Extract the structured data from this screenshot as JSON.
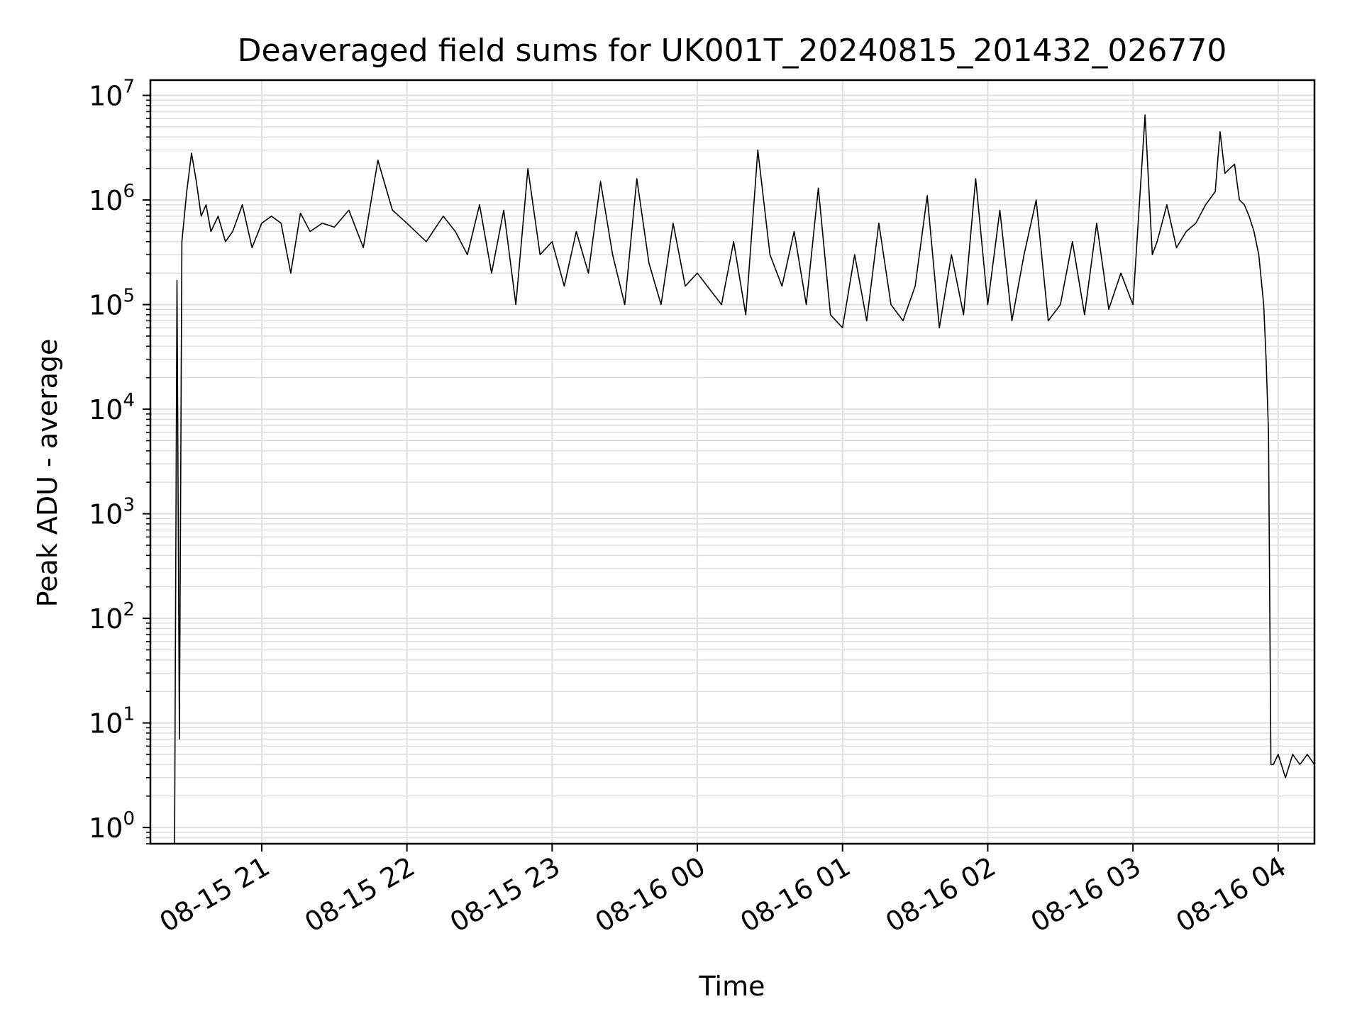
{
  "chart_data": {
    "type": "line",
    "title": "Deaveraged field sums for UK001T_20240815_201432_026770",
    "xlabel": "Time",
    "ylabel": "Peak ADU - average",
    "yscale": "log",
    "ylim": [
      0.7,
      14000000
    ],
    "xlim": [
      "2024-08-15 20:14",
      "2024-08-16 04:15"
    ],
    "grid": true,
    "legend": "none",
    "x_ticks": [
      {
        "time": "2024-08-15 21:00",
        "label": "08-15 21"
      },
      {
        "time": "2024-08-15 22:00",
        "label": "08-15 22"
      },
      {
        "time": "2024-08-15 23:00",
        "label": "08-15 23"
      },
      {
        "time": "2024-08-16 00:00",
        "label": "08-16 00"
      },
      {
        "time": "2024-08-16 01:00",
        "label": "08-16 01"
      },
      {
        "time": "2024-08-16 02:00",
        "label": "08-16 02"
      },
      {
        "time": "2024-08-16 03:00",
        "label": "08-16 03"
      },
      {
        "time": "2024-08-16 04:00",
        "label": "08-16 04"
      }
    ],
    "y_ticks": [
      {
        "value": 1,
        "base": "10",
        "exp": "0"
      },
      {
        "value": 10,
        "base": "10",
        "exp": "1"
      },
      {
        "value": 100,
        "base": "10",
        "exp": "2"
      },
      {
        "value": 1000,
        "base": "10",
        "exp": "3"
      },
      {
        "value": 10000,
        "base": "10",
        "exp": "4"
      },
      {
        "value": 100000,
        "base": "10",
        "exp": "5"
      },
      {
        "value": 1000000,
        "base": "10",
        "exp": "6"
      },
      {
        "value": 10000000,
        "base": "10",
        "exp": "7"
      }
    ],
    "line_color": "#000000",
    "series": [
      {
        "x": [
          "2024-08-15 20:24",
          "2024-08-15 20:25",
          "2024-08-15 20:26",
          "2024-08-15 20:27",
          "2024-08-15 20:29",
          "2024-08-15 20:31",
          "2024-08-15 20:33",
          "2024-08-15 20:35",
          "2024-08-15 20:37",
          "2024-08-15 20:39",
          "2024-08-15 20:42",
          "2024-08-15 20:45",
          "2024-08-15 20:48",
          "2024-08-15 20:52",
          "2024-08-15 20:56",
          "2024-08-15 21:00",
          "2024-08-15 21:04",
          "2024-08-15 21:08",
          "2024-08-15 21:12",
          "2024-08-15 21:16",
          "2024-08-15 21:20",
          "2024-08-15 21:25",
          "2024-08-15 21:30",
          "2024-08-15 21:36",
          "2024-08-15 21:42",
          "2024-08-15 21:48",
          "2024-08-15 21:54",
          "2024-08-15 22:00",
          "2024-08-15 22:08",
          "2024-08-15 22:15",
          "2024-08-15 22:20",
          "2024-08-15 22:25",
          "2024-08-15 22:30",
          "2024-08-15 22:35",
          "2024-08-15 22:40",
          "2024-08-15 22:45",
          "2024-08-15 22:50",
          "2024-08-15 22:55",
          "2024-08-15 23:00",
          "2024-08-15 23:05",
          "2024-08-15 23:10",
          "2024-08-15 23:15",
          "2024-08-15 23:20",
          "2024-08-15 23:25",
          "2024-08-15 23:30",
          "2024-08-15 23:35",
          "2024-08-15 23:40",
          "2024-08-15 23:45",
          "2024-08-15 23:50",
          "2024-08-15 23:55",
          "2024-08-16 00:00",
          "2024-08-16 00:10",
          "2024-08-16 00:15",
          "2024-08-16 00:20",
          "2024-08-16 00:25",
          "2024-08-16 00:30",
          "2024-08-16 00:35",
          "2024-08-16 00:40",
          "2024-08-16 00:45",
          "2024-08-16 00:50",
          "2024-08-16 00:55",
          "2024-08-16 01:00",
          "2024-08-16 01:05",
          "2024-08-16 01:10",
          "2024-08-16 01:15",
          "2024-08-16 01:20",
          "2024-08-16 01:25",
          "2024-08-16 01:30",
          "2024-08-16 01:35",
          "2024-08-16 01:40",
          "2024-08-16 01:45",
          "2024-08-16 01:50",
          "2024-08-16 01:55",
          "2024-08-16 02:00",
          "2024-08-16 02:05",
          "2024-08-16 02:10",
          "2024-08-16 02:15",
          "2024-08-16 02:20",
          "2024-08-16 02:25",
          "2024-08-16 02:30",
          "2024-08-16 02:35",
          "2024-08-16 02:40",
          "2024-08-16 02:45",
          "2024-08-16 02:50",
          "2024-08-16 02:55",
          "2024-08-16 03:00",
          "2024-08-16 03:05",
          "2024-08-16 03:08",
          "2024-08-16 03:10",
          "2024-08-16 03:14",
          "2024-08-16 03:18",
          "2024-08-16 03:22",
          "2024-08-16 03:26",
          "2024-08-16 03:30",
          "2024-08-16 03:34",
          "2024-08-16 03:36",
          "2024-08-16 03:38",
          "2024-08-16 03:40",
          "2024-08-16 03:42",
          "2024-08-16 03:44",
          "2024-08-16 03:46",
          "2024-08-16 03:48",
          "2024-08-16 03:50",
          "2024-08-16 03:52",
          "2024-08-16 03:54",
          "2024-08-16 03:55",
          "2024-08-16 03:56",
          "2024-08-16 03:57",
          "2024-08-16 03:58",
          "2024-08-16 04:00",
          "2024-08-16 04:03",
          "2024-08-16 04:06",
          "2024-08-16 04:09",
          "2024-08-16 04:12",
          "2024-08-16 04:15"
        ],
        "y": [
          0.7,
          170000,
          7,
          400000,
          1200000,
          2800000,
          1500000,
          700000,
          900000,
          500000,
          700000,
          400000,
          500000,
          900000,
          350000,
          600000,
          700000,
          600000,
          200000,
          750000,
          500000,
          600000,
          550000,
          800000,
          350000,
          2400000,
          800000,
          600000,
          400000,
          700000,
          500000,
          300000,
          900000,
          200000,
          800000,
          100000,
          2000000,
          300000,
          400000,
          150000,
          500000,
          200000,
          1500000,
          300000,
          100000,
          1600000,
          250000,
          100000,
          600000,
          150000,
          200000,
          100000,
          400000,
          80000,
          3000000,
          300000,
          150000,
          500000,
          100000,
          1300000,
          80000,
          60000,
          300000,
          70000,
          600000,
          100000,
          70000,
          150000,
          1100000,
          60000,
          300000,
          80000,
          1600000,
          100000,
          800000,
          70000,
          300000,
          1000000,
          70000,
          100000,
          400000,
          80000,
          600000,
          90000,
          200000,
          100000,
          6500000,
          300000,
          400000,
          900000,
          350000,
          500000,
          600000,
          900000,
          1200000,
          4500000,
          1800000,
          2000000,
          2200000,
          1000000,
          900000,
          700000,
          500000,
          300000,
          100000,
          30000,
          6000,
          4,
          4,
          5,
          3,
          5,
          4,
          5,
          4
        ]
      }
    ]
  }
}
